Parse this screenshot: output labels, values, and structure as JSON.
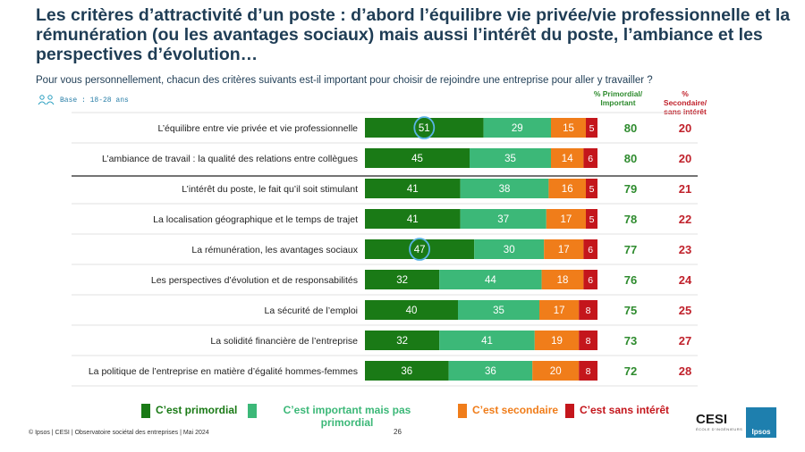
{
  "title": "Les critères d’attractivité d’un poste : d’abord l’équilibre vie privée/vie professionnelle et la rémunération (ou les avantages sociaux) mais aussi l’intérêt du poste, l’ambiance et les perspectives d’évolution…",
  "subtitle": "Pour vous personnellement, chacun des critères suivants est-il important pour choisir de rejoindre une entreprise pour aller y travailler ?",
  "base": "Base : 18-28 ans",
  "col_primordial_header": "% Primordial/ Important",
  "col_secondaire_header": "% Secondaire/ sans intérêt",
  "colors": {
    "primordial": "#1a7a16",
    "important": "#3cb878",
    "secondaire": "#f07d1a",
    "sans_interet": "#c4161c",
    "green_text": "#2e8b2e",
    "red_text": "#c0212b"
  },
  "legend": [
    {
      "label": "C’est primordial",
      "color": "#1a7a16"
    },
    {
      "label": "C’est important mais pas primordial",
      "color": "#3cb878"
    },
    {
      "label": "C’est secondaire",
      "color": "#f07d1a"
    },
    {
      "label": "C’est sans intérêt",
      "color": "#c4161c"
    }
  ],
  "chart_data": {
    "type": "bar",
    "orientation": "horizontal-stacked",
    "categories": [
      "L’équilibre entre vie privée et vie professionnelle",
      "L’ambiance de travail : la qualité des relations entre collègues",
      "L’intérêt du poste, le fait qu’il soit stimulant",
      "La localisation géographique et le temps de trajet",
      "La rémunération, les avantages sociaux",
      "Les perspectives d’évolution et de responsabilités",
      "La sécurité de l’emploi",
      "La solidité financière de l’entreprise",
      "La politique de l’entreprise en matière d’égalité hommes-femmes"
    ],
    "series": [
      {
        "name": "C’est primordial",
        "values": [
          51,
          45,
          41,
          41,
          47,
          32,
          40,
          32,
          36
        ]
      },
      {
        "name": "C’est important mais pas primordial",
        "values": [
          29,
          35,
          38,
          37,
          30,
          44,
          35,
          41,
          36
        ]
      },
      {
        "name": "C’est secondaire",
        "values": [
          15,
          14,
          16,
          17,
          17,
          18,
          17,
          19,
          20
        ]
      },
      {
        "name": "C’est sans intérêt",
        "values": [
          5,
          6,
          5,
          5,
          6,
          6,
          8,
          8,
          8
        ]
      }
    ],
    "total_primordial_important": [
      80,
      80,
      79,
      78,
      77,
      76,
      75,
      73,
      72
    ],
    "total_secondaire_sans_interet": [
      20,
      20,
      21,
      22,
      23,
      24,
      25,
      27,
      28
    ],
    "highlighted_primordial": [
      0,
      4
    ]
  },
  "footer": "© Ipsos | CESI | Observatoire sociétal des entreprises | Mai 2024",
  "page_number": "26",
  "logo_cesi": "CESI",
  "logo_cesi_sub": "ÉCOLE D’INGÉNIEURS",
  "logo_ipsos": "Ipsos"
}
